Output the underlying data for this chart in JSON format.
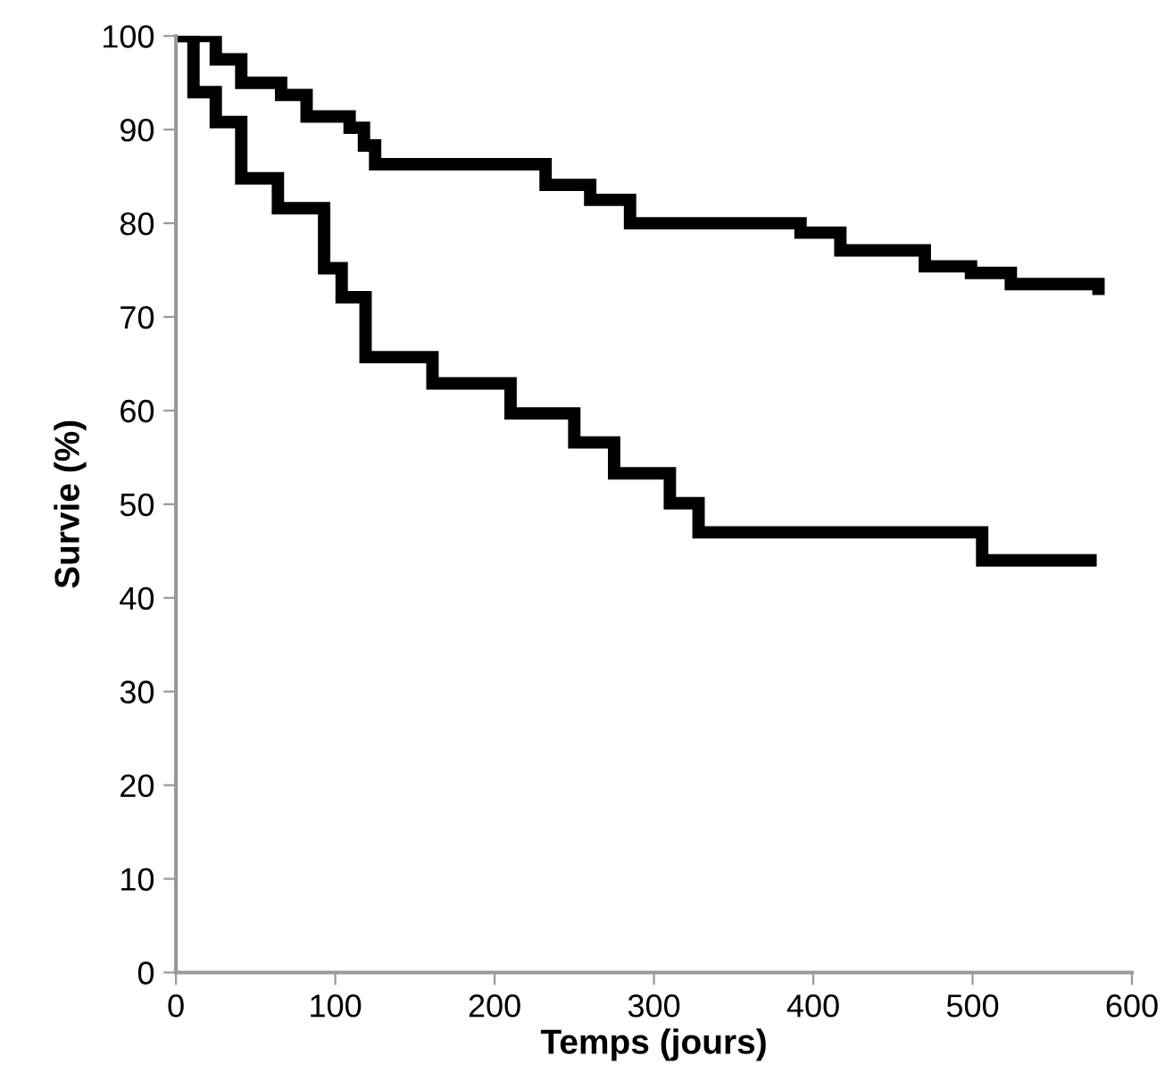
{
  "chart_data": {
    "type": "step",
    "xlabel": "Temps (jours)",
    "ylabel": "Survie (%)",
    "xlim": [
      0,
      600
    ],
    "xticks": [
      0,
      100,
      200,
      300,
      400,
      500,
      600
    ],
    "ylim": [
      0,
      100
    ],
    "yticks": [
      0,
      10,
      20,
      30,
      40,
      50,
      60,
      70,
      80,
      90,
      100
    ],
    "grid": false,
    "line_style": "solid",
    "marker": "none",
    "series": [
      {
        "color": "#000000",
        "x": [
          0,
          25,
          41,
          66,
          82,
          109,
          118,
          125,
          232,
          260,
          285,
          392,
          417,
          470,
          499,
          524,
          579
        ],
        "values": [
          100,
          97.5,
          95,
          93.7,
          91.4,
          90.2,
          88.3,
          86.3,
          84.1,
          82.5,
          80,
          79,
          77.1,
          75.4,
          74.7,
          73.5,
          73
        ]
      },
      {
        "color": "#000000",
        "x": [
          0,
          11,
          25,
          41,
          64,
          93,
          104,
          119,
          161,
          210,
          250,
          275,
          310,
          328,
          506,
          574
        ],
        "values": [
          100,
          94,
          90.8,
          84.8,
          81.6,
          75.2,
          72.1,
          65.7,
          62.9,
          59.7,
          56.6,
          53.3,
          50.1,
          47,
          44,
          44
        ]
      }
    ]
  }
}
